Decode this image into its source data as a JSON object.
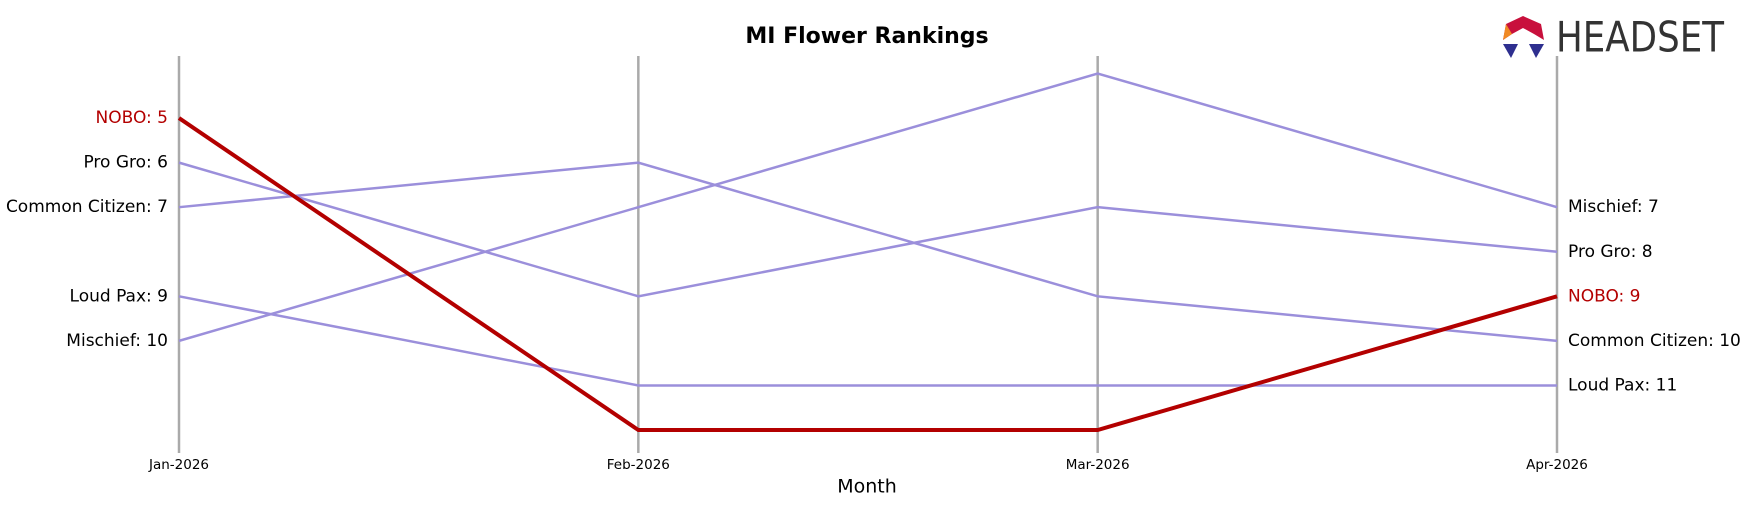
{
  "chart_data": {
    "type": "bump",
    "title": "MI Flower Rankings",
    "x_label": "Month",
    "logo_text": "HEADSET",
    "categories": [
      "Jan-2026",
      "Feb-2026",
      "Mar-2026",
      "Apr-2026"
    ],
    "series": [
      {
        "name": "Pro Gro",
        "color": "#9b8fdb",
        "values": [
          6,
          9,
          7,
          8
        ],
        "value_labels": [
          "Pro Gro: 6",
          null,
          null,
          "Pro Gro: 8"
        ]
      },
      {
        "name": "Common Citizen",
        "color": "#9b8fdb",
        "values": [
          7,
          6,
          9,
          10
        ],
        "value_labels": [
          "Common Citizen: 7",
          null,
          null,
          "Common Citizen: 10"
        ]
      },
      {
        "name": "Loud Pax",
        "color": "#9b8fdb",
        "values": [
          9,
          11,
          11,
          11
        ],
        "value_labels": [
          "Loud Pax: 9",
          null,
          null,
          "Loud Pax: 11"
        ]
      },
      {
        "name": "Mischief",
        "color": "#9b8fdb",
        "values": [
          10,
          7,
          4,
          7
        ],
        "value_labels": [
          "Mischief: 10",
          null,
          null,
          "Mischief: 7"
        ]
      },
      {
        "name": "NOBO",
        "color": "#b30000",
        "values": [
          5,
          12,
          12,
          9
        ],
        "value_labels": [
          "NOBO: 5",
          null,
          null,
          "NOBO: 9"
        ]
      }
    ]
  }
}
